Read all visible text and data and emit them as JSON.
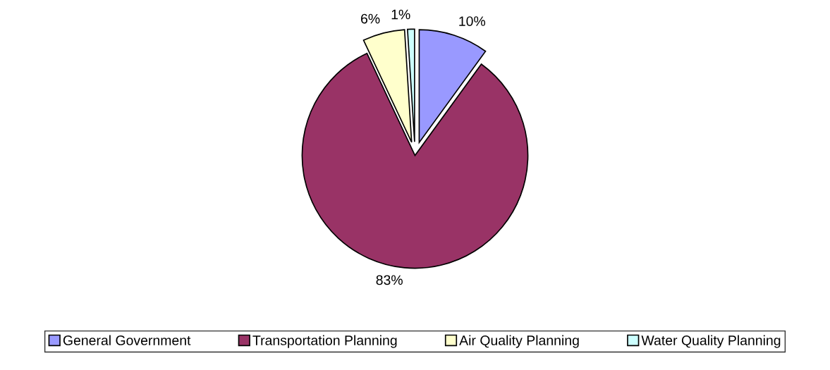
{
  "chart_data": {
    "type": "pie",
    "categories": [
      "General Government",
      "Transportation Planning",
      "Air Quality Planning",
      "Water Quality Planning"
    ],
    "values": [
      10,
      83,
      6,
      1
    ],
    "colors": [
      "#9999ff",
      "#993366",
      "#ffffcc",
      "#ccffff"
    ],
    "value_labels": [
      "10%",
      "83%",
      "6%",
      "1%"
    ],
    "legend": "bottom"
  }
}
